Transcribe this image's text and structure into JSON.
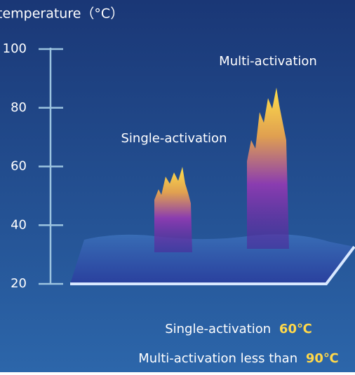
{
  "axis": {
    "title": "temperature（°C）",
    "ticks": [
      "100",
      "80",
      "60",
      "40",
      "20"
    ]
  },
  "labels": {
    "single": "Single-activation",
    "multi": "Multi-activation"
  },
  "captions": [
    {
      "text": "Single-activation",
      "value": "60℃"
    },
    {
      "text": "Multi-activation less than",
      "value": "90℃"
    }
  ]
}
